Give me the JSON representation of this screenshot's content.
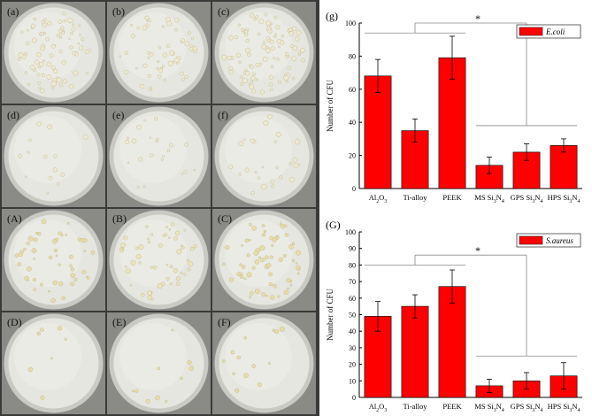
{
  "photo_panels": [
    {
      "label": "(a)",
      "colonies": 80,
      "colony_color": "#efe9d0"
    },
    {
      "label": "(b)",
      "colonies": 55,
      "colony_color": "#efe9d0"
    },
    {
      "label": "(c)",
      "colonies": 95,
      "colony_color": "#efe9d0"
    },
    {
      "label": "(d)",
      "colonies": 14,
      "colony_color": "#efe9d0"
    },
    {
      "label": "(e)",
      "colonies": 22,
      "colony_color": "#efe9d0"
    },
    {
      "label": "(f)",
      "colonies": 26,
      "colony_color": "#efe9d0"
    },
    {
      "label": "(A)",
      "colonies": 48,
      "colony_color": "#e8dca8"
    },
    {
      "label": "(B)",
      "colonies": 55,
      "colony_color": "#ece4bc"
    },
    {
      "label": "(C)",
      "colonies": 67,
      "colony_color": "#e8dca8"
    },
    {
      "label": "(D)",
      "colonies": 7,
      "colony_color": "#e8dca8"
    },
    {
      "label": "(E)",
      "colonies": 10,
      "colony_color": "#e8dca8"
    },
    {
      "label": "(F)",
      "colonies": 13,
      "colony_color": "#e8dca8"
    }
  ],
  "chart_data": [
    {
      "type": "bar",
      "panel_label": "(g)",
      "legend": "E.coli",
      "legend_position": "top-right",
      "ylabel": "Number of CFU",
      "xlabel": "",
      "categories": [
        "Al2O3",
        "Ti-alloy",
        "PEEK",
        "MS Si3N4",
        "GPS Si3N4",
        "HPS Si3N4"
      ],
      "values": [
        68,
        35,
        79,
        14,
        22,
        26
      ],
      "errors": [
        10,
        7,
        13,
        5,
        5,
        4
      ],
      "ylim": [
        0,
        100
      ],
      "yticks": [
        0,
        20,
        40,
        60,
        80,
        100
      ],
      "significance": "*",
      "bar_color": "#ff0000",
      "grid": false
    },
    {
      "type": "bar",
      "panel_label": "(G)",
      "legend": "S.aureus",
      "legend_position": "top-right",
      "ylabel": "Number of CFU",
      "xlabel": "",
      "categories": [
        "Al2O3",
        "Ti-alloy",
        "PEEK",
        "MS Si3N4",
        "GPS Si3N4",
        "HPS Si3N4"
      ],
      "values": [
        49,
        55,
        67,
        7,
        10,
        13
      ],
      "errors": [
        9,
        7,
        10,
        4,
        5,
        8
      ],
      "ylim": [
        0,
        100
      ],
      "yticks": [
        0,
        10,
        20,
        30,
        40,
        50,
        60,
        70,
        80,
        90,
        100
      ],
      "significance": "*",
      "bar_color": "#ff0000",
      "grid": false
    }
  ]
}
